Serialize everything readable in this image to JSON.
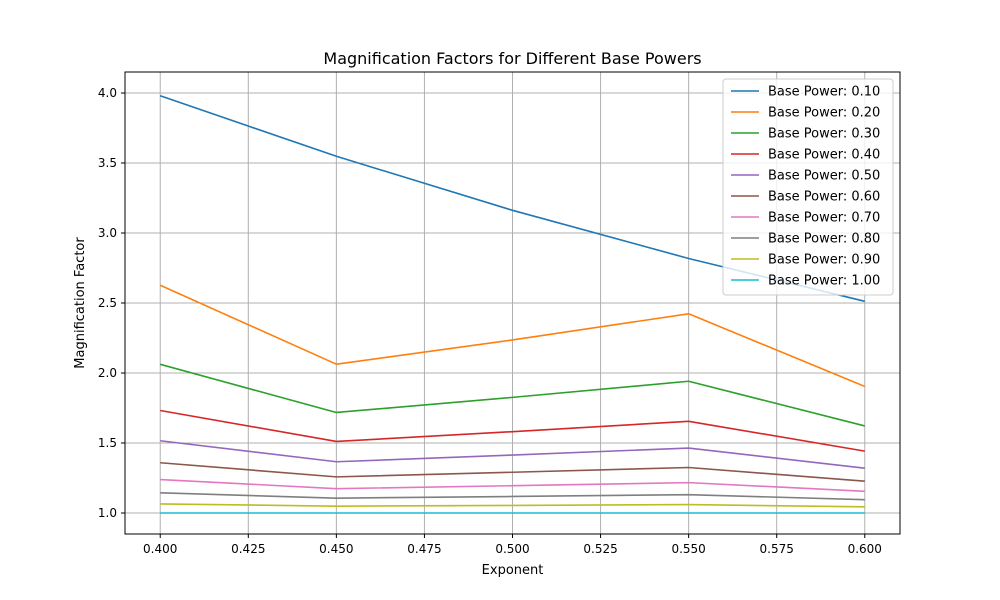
{
  "chart_data": {
    "type": "line",
    "title": "Magnification Factors for Different Base Powers",
    "xlabel": "Exponent",
    "ylabel": "Magnification Factor",
    "xlim": [
      0.39,
      0.61
    ],
    "ylim": [
      0.85,
      4.15
    ],
    "xticks": [
      0.4,
      0.425,
      0.45,
      0.475,
      0.5,
      0.525,
      0.55,
      0.575,
      0.6
    ],
    "xtick_labels": [
      "0.400",
      "0.425",
      "0.450",
      "0.475",
      "0.500",
      "0.525",
      "0.550",
      "0.575",
      "0.600"
    ],
    "yticks": [
      1.0,
      1.5,
      2.0,
      2.5,
      3.0,
      3.5,
      4.0
    ],
    "ytick_labels": [
      "1.0",
      "1.5",
      "2.0",
      "2.5",
      "3.0",
      "3.5",
      "4.0"
    ],
    "grid": true,
    "legend_position": "top-right",
    "series": [
      {
        "name": "Base Power: 0.10",
        "color": "#1f77b4",
        "x": [
          0.4,
          0.45,
          0.5,
          0.55,
          0.6
        ],
        "y": [
          3.98,
          3.548,
          3.162,
          2.818,
          2.512
        ]
      },
      {
        "name": "Base Power: 0.20",
        "color": "#ff7f0e",
        "x": [
          0.4,
          0.45,
          0.5,
          0.55,
          0.6
        ],
        "y": [
          2.627,
          2.063,
          2.236,
          2.423,
          1.904
        ]
      },
      {
        "name": "Base Power: 0.30",
        "color": "#2ca02c",
        "x": [
          0.4,
          0.45,
          0.5,
          0.55,
          0.6
        ],
        "y": [
          2.062,
          1.718,
          1.826,
          1.941,
          1.622
        ]
      },
      {
        "name": "Base Power: 0.40",
        "color": "#d62728",
        "x": [
          0.4,
          0.45,
          0.5,
          0.55,
          0.6
        ],
        "y": [
          1.732,
          1.511,
          1.581,
          1.655,
          1.442
        ]
      },
      {
        "name": "Base Power: 0.50",
        "color": "#9467bd",
        "x": [
          0.4,
          0.45,
          0.5,
          0.55,
          0.6
        ],
        "y": [
          1.516,
          1.366,
          1.414,
          1.464,
          1.32
        ]
      },
      {
        "name": "Base Power: 0.60",
        "color": "#8c564b",
        "x": [
          0.4,
          0.45,
          0.5,
          0.55,
          0.6
        ],
        "y": [
          1.359,
          1.258,
          1.291,
          1.325,
          1.227
        ]
      },
      {
        "name": "Base Power: 0.70",
        "color": "#e377c2",
        "x": [
          0.4,
          0.45,
          0.5,
          0.55,
          0.6
        ],
        "y": [
          1.239,
          1.174,
          1.195,
          1.217,
          1.155
        ]
      },
      {
        "name": "Base Power: 0.80",
        "color": "#7f7f7f",
        "x": [
          0.4,
          0.45,
          0.5,
          0.55,
          0.6
        ],
        "y": [
          1.144,
          1.106,
          1.118,
          1.131,
          1.095
        ]
      },
      {
        "name": "Base Power: 0.90",
        "color": "#bcbd22",
        "x": [
          0.4,
          0.45,
          0.5,
          0.55,
          0.6
        ],
        "y": [
          1.065,
          1.049,
          1.054,
          1.06,
          1.044
        ]
      },
      {
        "name": "Base Power: 1.00",
        "color": "#17becf",
        "x": [
          0.4,
          0.45,
          0.5,
          0.55,
          0.6
        ],
        "y": [
          1.0,
          1.0,
          1.0,
          1.0,
          1.0
        ]
      }
    ]
  }
}
